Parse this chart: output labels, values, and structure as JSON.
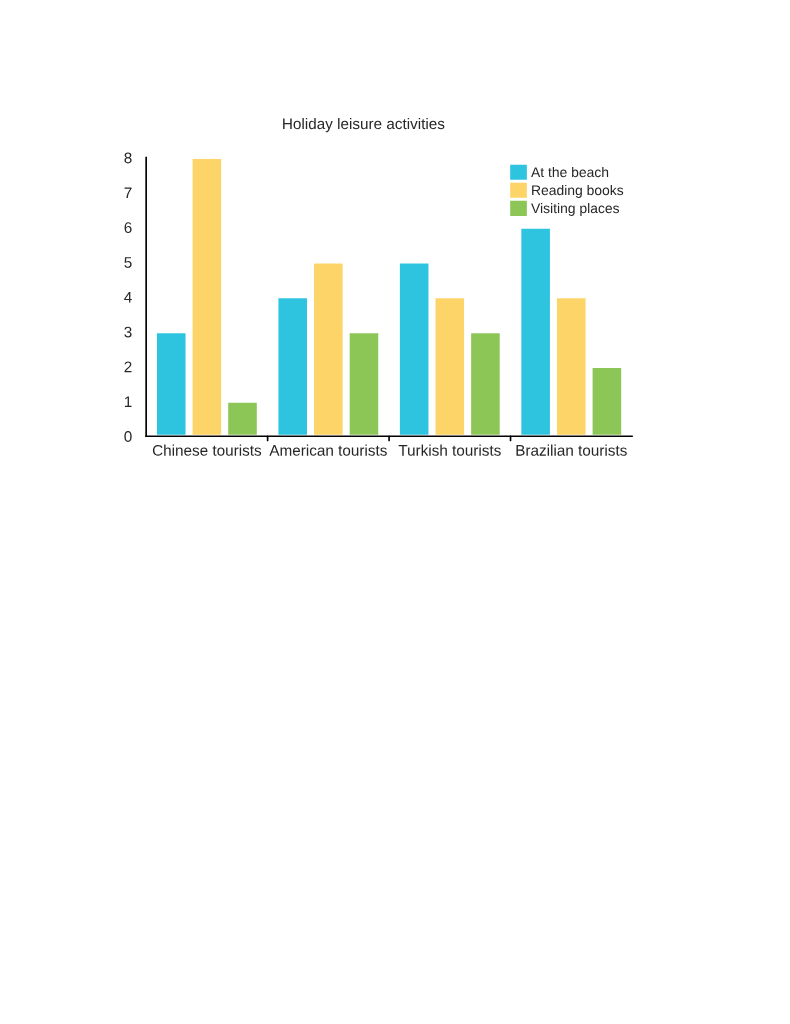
{
  "chart_data": {
    "type": "bar",
    "title": "Holiday leisure activities",
    "categories": [
      "Chinese tourists",
      "American tourists",
      "Turkish tourists",
      "Brazilian tourists"
    ],
    "series": [
      {
        "name": "At the beach",
        "color": "#2ec4e0",
        "values": [
          3,
          4,
          5,
          6
        ]
      },
      {
        "name": "Reading books",
        "color": "#fcd468",
        "values": [
          8,
          5,
          4,
          4
        ]
      },
      {
        "name": "Visiting places",
        "color": "#8cc657",
        "values": [
          1,
          3,
          3,
          2
        ]
      }
    ],
    "ylim": [
      0,
      8
    ],
    "yticks": [
      0,
      1,
      2,
      3,
      4,
      5,
      6,
      7,
      8
    ],
    "grid": false,
    "legend": "top right"
  }
}
